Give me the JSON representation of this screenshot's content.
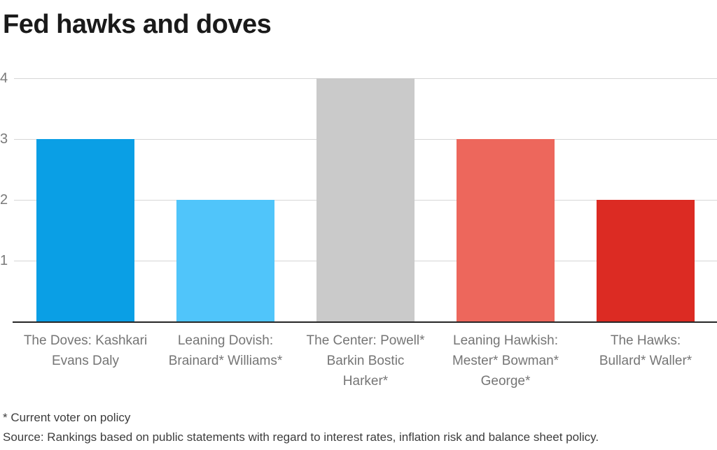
{
  "page": {
    "title": "Fed hawks and doves"
  },
  "chart_data": {
    "type": "bar",
    "title": "Fed hawks and doves",
    "categories": [
      "The Doves: Kashkari Evans Daly",
      "Leaning Dovish: Brainard* Williams*",
      "The Center: Powell* Barkin Bostic Harker*",
      "Leaning Hawkish: Mester* Bowman* George*",
      "The Hawks: Bullard* Waller*"
    ],
    "values": [
      3,
      2,
      4,
      3,
      2
    ],
    "bar_colors": [
      "#0a9fe5",
      "#50c5fa",
      "#cacaca",
      "#ed675c",
      "#dc2b23"
    ],
    "xlabel": "",
    "ylabel": "",
    "ylim": [
      0,
      4
    ],
    "yticks": [
      1,
      2,
      3,
      4
    ],
    "grid": "horizontal",
    "legend": "none"
  },
  "x_axis": {
    "labels": [
      {
        "lines": [
          "The Doves: Kashkari",
          "Evans Daly"
        ]
      },
      {
        "lines": [
          "Leaning Dovish:",
          "Brainard* Williams*"
        ]
      },
      {
        "lines": [
          "The Center: Powell*",
          "Barkin Bostic",
          "Harker*"
        ]
      },
      {
        "lines": [
          "Leaning Hawkish:",
          "Mester* Bowman*",
          "George*"
        ]
      },
      {
        "lines": [
          "The Hawks:",
          "Bullard* Waller*"
        ]
      }
    ]
  },
  "footnotes": {
    "voter_note": "* Current voter on policy",
    "source_note": "Source: Rankings based on public statements with regard to interest rates, inflation risk and balance sheet policy."
  },
  "colors": {
    "title_text": "#1a1a1a",
    "axis_text": "#757575",
    "tick_text": "#7a7a7a",
    "gridline": "#d6d6d6",
    "baseline": "#262626",
    "footnote_text": "#3d3d3d",
    "background": "#ffffff"
  }
}
